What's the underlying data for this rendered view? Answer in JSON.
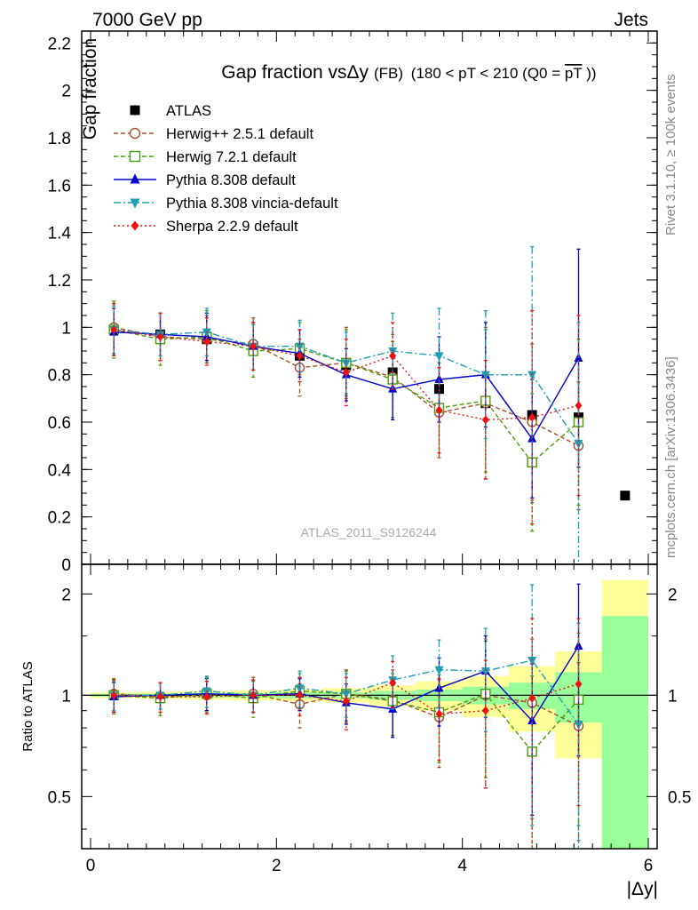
{
  "header": {
    "left_label": "7000 GeV pp",
    "right_label": "Jets",
    "side_label_rivet": "Rivet 3.1.10, ≥ 100k events",
    "side_label_mcplots": "mcplots.cern.ch [arXiv:1306.3436]",
    "analysis_label": "ATLAS_2011_S9126244"
  },
  "chart_data": [
    {
      "type": "scatter",
      "panel": "main",
      "title": "Gap fraction vsΔy",
      "title_tag": "(FB)",
      "title_range": "(180 < pT < 210 (Q0 =",
      "title_range_overline": "pT",
      "title_range_close": "))",
      "xlabel": "|Δy|",
      "ylabel": "Gap fraction",
      "xlim": [
        0,
        6
      ],
      "ylim": [
        0,
        2.25
      ],
      "yticks": [
        0,
        0.2,
        0.4,
        0.6,
        0.8,
        1,
        1.2,
        1.4,
        1.6,
        1.8,
        2,
        2.2
      ],
      "ytick_labels": [
        "0",
        "0.2",
        "0.4",
        "0.6",
        "0.8",
        "1",
        "1.2",
        "1.4",
        "1.6",
        "1.8",
        "2",
        "2.2"
      ],
      "x": [
        0.25,
        0.75,
        1.25,
        1.75,
        2.25,
        2.75,
        3.25,
        3.75,
        4.25,
        4.75,
        5.25,
        5.75
      ],
      "legend_position": "top-left",
      "series": [
        {
          "name": "ATLAS",
          "style": "data",
          "color": "#000000",
          "marker": "square-filled",
          "values": [
            0.99,
            0.97,
            0.95,
            0.92,
            0.88,
            0.84,
            0.81,
            0.74,
            0.68,
            0.63,
            0.62,
            0.29
          ]
        },
        {
          "name": "Herwig++ 2.5.1 default",
          "style": "dash",
          "color": "#a0522d",
          "marker": "circle-open",
          "values": [
            1.0,
            0.96,
            0.95,
            0.93,
            0.83,
            0.85,
            0.79,
            0.64,
            0.68,
            0.6,
            0.5
          ],
          "errors": [
            0.11,
            0.1,
            0.1,
            0.11,
            0.12,
            0.15,
            0.18,
            0.19,
            0.32,
            0.33,
            0.27
          ]
        },
        {
          "name": "Herwig 7.2.1 default",
          "style": "dash",
          "color": "#4e9a06",
          "marker": "square-open",
          "values": [
            0.99,
            0.95,
            0.96,
            0.9,
            0.91,
            0.85,
            0.78,
            0.66,
            0.69,
            0.43,
            0.6
          ],
          "errors": [
            0.12,
            0.11,
            0.11,
            0.11,
            0.11,
            0.14,
            0.16,
            0.19,
            0.3,
            0.29,
            0.35
          ]
        },
        {
          "name": "Pythia 8.308 default",
          "style": "solid",
          "color": "#0000cd",
          "marker": "triangle-up",
          "values": [
            0.98,
            0.97,
            0.96,
            0.92,
            0.89,
            0.8,
            0.74,
            0.78,
            0.8,
            0.53,
            0.87
          ],
          "errors": [
            0.1,
            0.09,
            0.1,
            0.1,
            0.1,
            0.11,
            0.13,
            0.18,
            0.22,
            0.25,
            0.46
          ]
        },
        {
          "name": "Pythia 8.308 vincia-default",
          "style": "dashdot",
          "color": "#1e9eb4",
          "marker": "triangle-down",
          "values": [
            0.99,
            0.97,
            0.98,
            0.92,
            0.92,
            0.85,
            0.9,
            0.88,
            0.8,
            0.8,
            0.51
          ],
          "errors": [
            0.1,
            0.09,
            0.1,
            0.1,
            0.11,
            0.13,
            0.16,
            0.2,
            0.27,
            0.54,
            0.51
          ]
        },
        {
          "name": "Sherpa 2.2.9 default",
          "style": "dot",
          "color": "#ee1111",
          "marker": "diamond",
          "values": [
            0.99,
            0.96,
            0.94,
            0.92,
            0.88,
            0.81,
            0.88,
            0.65,
            0.61,
            0.62,
            0.67
          ],
          "errors": [
            0.11,
            0.1,
            0.1,
            0.1,
            0.11,
            0.14,
            0.14,
            0.18,
            0.25,
            0.45,
            0.38
          ]
        }
      ]
    },
    {
      "type": "scatter",
      "panel": "ratio",
      "ylabel": "Ratio to ATLAS",
      "xlabel": "|Δy|",
      "yscale": "log",
      "xlim": [
        0,
        6
      ],
      "ylim": [
        0.35,
        2.45
      ],
      "xticks": [
        0,
        2,
        4,
        6
      ],
      "xtick_labels": [
        "0",
        "2",
        "4",
        "6"
      ],
      "yticks": [
        0.5,
        1,
        2
      ],
      "ytick_labels": [
        "0.5",
        "1",
        "2"
      ],
      "x": [
        0.25,
        0.75,
        1.25,
        1.75,
        2.25,
        2.75,
        3.25,
        3.75,
        4.25,
        4.75,
        5.25
      ],
      "uncertainty_bands": {
        "bin_edges": [
          0,
          0.5,
          1,
          1.5,
          2,
          2.5,
          3,
          3.5,
          4,
          4.5,
          5,
          5.5,
          6
        ],
        "stat": [
          0.01,
          0.01,
          0.015,
          0.015,
          0.02,
          0.02,
          0.03,
          0.04,
          0.06,
          0.09,
          0.17,
          0.72
        ],
        "total": [
          0.02,
          0.025,
          0.03,
          0.035,
          0.04,
          0.05,
          0.07,
          0.1,
          0.14,
          0.22,
          0.35,
          1.2
        ],
        "stat_color": "#99ff99",
        "total_color": "#ffff99"
      },
      "series": [
        {
          "name": "Herwig++ 2.5.1 default",
          "color": "#a0522d",
          "values": [
            1.01,
            0.99,
            1.0,
            1.01,
            0.94,
            1.01,
            0.97,
            0.86,
            1.0,
            0.95,
            0.81
          ],
          "errors": [
            0.11,
            0.1,
            0.1,
            0.12,
            0.14,
            0.18,
            0.22,
            0.25,
            0.47,
            0.52,
            0.44
          ]
        },
        {
          "name": "Herwig 7.2.1 default",
          "color": "#4e9a06",
          "values": [
            1.0,
            0.98,
            1.01,
            0.98,
            1.03,
            1.01,
            0.96,
            0.89,
            1.01,
            0.68,
            0.97
          ],
          "errors": [
            0.12,
            0.11,
            0.12,
            0.12,
            0.13,
            0.17,
            0.2,
            0.26,
            0.44,
            0.46,
            0.56
          ]
        },
        {
          "name": "Pythia 8.308 default",
          "color": "#0000cd",
          "values": [
            0.99,
            1.0,
            1.01,
            1.0,
            1.01,
            0.95,
            0.91,
            1.05,
            1.18,
            0.84,
            1.4
          ],
          "errors": [
            0.1,
            0.09,
            0.11,
            0.11,
            0.11,
            0.13,
            0.16,
            0.24,
            0.32,
            0.4,
            0.74
          ]
        },
        {
          "name": "Pythia 8.308 vincia-default",
          "color": "#1e9eb4",
          "values": [
            1.0,
            1.0,
            1.03,
            1.0,
            1.05,
            1.01,
            1.11,
            1.19,
            1.18,
            1.27,
            0.82
          ],
          "errors": [
            0.1,
            0.09,
            0.11,
            0.11,
            0.13,
            0.15,
            0.2,
            0.27,
            0.4,
            0.86,
            0.82
          ]
        },
        {
          "name": "Sherpa 2.2.9 default",
          "color": "#ee1111",
          "values": [
            1.0,
            0.99,
            0.99,
            1.0,
            1.0,
            0.96,
            1.09,
            0.88,
            0.9,
            0.98,
            1.08
          ],
          "errors": [
            0.11,
            0.1,
            0.11,
            0.11,
            0.13,
            0.17,
            0.17,
            0.24,
            0.37,
            0.71,
            0.61
          ]
        }
      ]
    }
  ]
}
